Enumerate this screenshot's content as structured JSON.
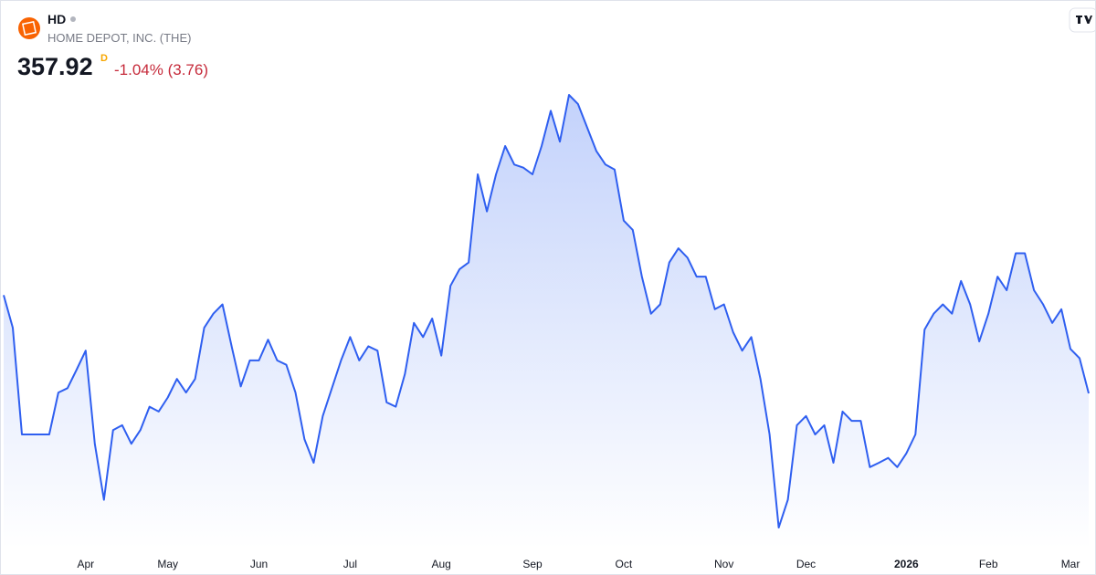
{
  "header": {
    "symbol": "HD",
    "company": "HOME DEPOT, INC. (THE)",
    "price": "357.92",
    "interval": "D",
    "change": "-1.04% (3.76)"
  },
  "chart_data": {
    "type": "area",
    "color": "#2f5ff0",
    "categories": [
      null,
      null,
      null,
      null,
      null,
      null,
      null,
      null,
      null,
      "Apr",
      null,
      null,
      null,
      null,
      null,
      null,
      null,
      null,
      "May",
      null,
      null,
      null,
      null,
      null,
      null,
      null,
      null,
      null,
      "Jun",
      null,
      null,
      null,
      null,
      null,
      null,
      null,
      null,
      null,
      "Jul",
      null,
      null,
      null,
      null,
      null,
      null,
      null,
      null,
      null,
      "Aug",
      null,
      null,
      null,
      null,
      null,
      null,
      null,
      null,
      null,
      "Sep",
      null,
      null,
      null,
      null,
      null,
      null,
      null,
      null,
      null,
      "Oct",
      null,
      null,
      null,
      null,
      null,
      null,
      null,
      null,
      null,
      null,
      "Nov",
      null,
      null,
      null,
      null,
      null,
      null,
      null,
      null,
      "Dec",
      null,
      null,
      null,
      null,
      null,
      null,
      null,
      null,
      null,
      null,
      "2026",
      null,
      null,
      null,
      null,
      null,
      null,
      null,
      null,
      "Feb",
      null,
      null,
      null,
      null,
      null,
      null,
      null,
      null,
      "Mar",
      null,
      null
    ],
    "values": [
      380.2,
      372.8,
      348.6,
      348.6,
      348.6,
      348.6,
      358.1,
      359.1,
      363.3,
      367.6,
      346.5,
      333.8,
      349.6,
      350.7,
      346.5,
      349.6,
      354.9,
      353.8,
      357.0,
      361.2,
      358.1,
      361.2,
      372.8,
      376.0,
      378.1,
      368.6,
      359.5,
      365.4,
      365.4,
      370.1,
      365.4,
      364.4,
      358.1,
      347.5,
      342.2,
      352.8,
      359.1,
      365.4,
      370.7,
      365.4,
      368.6,
      367.6,
      355.9,
      354.9,
      362.3,
      373.9,
      370.7,
      374.9,
      366.5,
      382.3,
      386.1,
      387.6,
      407.6,
      399.2,
      407.6,
      414.0,
      409.8,
      409.1,
      407.6,
      414.0,
      422.0,
      415.0,
      425.6,
      423.5,
      418.2,
      412.9,
      409.8,
      408.7,
      397.1,
      395.0,
      384.4,
      376.0,
      378.1,
      387.6,
      390.8,
      388.7,
      384.4,
      384.4,
      377.0,
      378.1,
      371.8,
      367.6,
      370.7,
      361.2,
      348.6,
      327.5,
      333.8,
      350.7,
      352.8,
      348.6,
      350.7,
      342.2,
      353.8,
      351.7,
      351.7,
      341.2,
      342.2,
      343.3,
      341.2,
      344.3,
      348.6,
      372.4,
      376.0,
      378.1,
      376.0,
      383.4,
      378.1,
      369.7,
      376.0,
      384.4,
      381.3,
      389.7,
      389.7,
      381.3,
      378.1,
      373.9,
      377.0,
      368.0,
      365.9,
      357.92
    ]
  }
}
